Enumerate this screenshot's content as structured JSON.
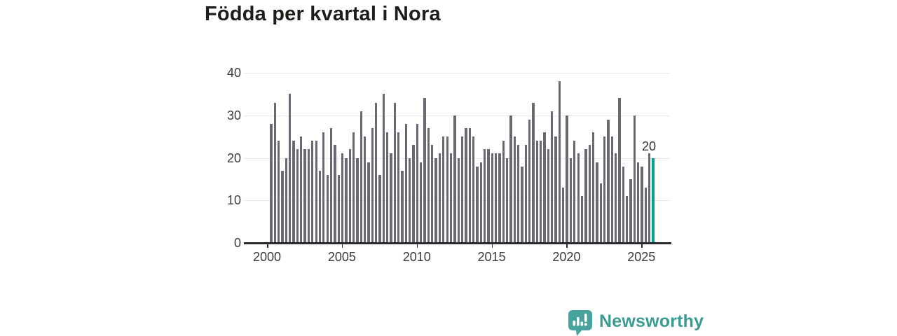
{
  "title": "Födda per kvartal i Nora",
  "annotation": {
    "label": "20"
  },
  "branding": {
    "name": "Newsworthy",
    "icon": "newsworthy-speech-bubble-chart-icon"
  },
  "colors": {
    "bar": "#696972",
    "highlight_bar": "#00a29a",
    "title_text": "#1f1d19",
    "axis_text": "#3a3a3a",
    "gridline": "#e8e8ea",
    "axis_line": "#2a2a2e",
    "brand_teal": "#3f9e97"
  },
  "chart_data": {
    "type": "bar",
    "title": "Födda per kvartal i Nora",
    "xlabel": "",
    "ylabel": "",
    "ylim": [
      0,
      40
    ],
    "yticks": [
      0,
      10,
      20,
      30,
      40
    ],
    "xticks": [
      2000,
      2005,
      2010,
      2015,
      2020,
      2025
    ],
    "grid": "horizontal",
    "legend": "none",
    "highlight_index": 102,
    "highlight_label": "20",
    "x_start": "2000-Q1",
    "x_end": "2025-Q3",
    "x": [
      "2000Q1",
      "2000Q2",
      "2000Q3",
      "2000Q4",
      "2001Q1",
      "2001Q2",
      "2001Q3",
      "2001Q4",
      "2002Q1",
      "2002Q2",
      "2002Q3",
      "2002Q4",
      "2003Q1",
      "2003Q2",
      "2003Q3",
      "2003Q4",
      "2004Q1",
      "2004Q2",
      "2004Q3",
      "2004Q4",
      "2005Q1",
      "2005Q2",
      "2005Q3",
      "2005Q4",
      "2006Q1",
      "2006Q2",
      "2006Q3",
      "2006Q4",
      "2007Q1",
      "2007Q2",
      "2007Q3",
      "2007Q4",
      "2008Q1",
      "2008Q2",
      "2008Q3",
      "2008Q4",
      "2009Q1",
      "2009Q2",
      "2009Q3",
      "2009Q4",
      "2010Q1",
      "2010Q2",
      "2010Q3",
      "2010Q4",
      "2011Q1",
      "2011Q2",
      "2011Q3",
      "2011Q4",
      "2012Q1",
      "2012Q2",
      "2012Q3",
      "2012Q4",
      "2013Q1",
      "2013Q2",
      "2013Q3",
      "2013Q4",
      "2014Q1",
      "2014Q2",
      "2014Q3",
      "2014Q4",
      "2015Q1",
      "2015Q2",
      "2015Q3",
      "2015Q4",
      "2016Q1",
      "2016Q2",
      "2016Q3",
      "2016Q4",
      "2017Q1",
      "2017Q2",
      "2017Q3",
      "2017Q4",
      "2018Q1",
      "2018Q2",
      "2018Q3",
      "2018Q4",
      "2019Q1",
      "2019Q2",
      "2019Q3",
      "2019Q4",
      "2020Q1",
      "2020Q2",
      "2020Q3",
      "2020Q4",
      "2021Q1",
      "2021Q2",
      "2021Q3",
      "2021Q4",
      "2022Q1",
      "2022Q2",
      "2022Q3",
      "2022Q4",
      "2023Q1",
      "2023Q2",
      "2023Q3",
      "2023Q4",
      "2024Q1",
      "2024Q2",
      "2024Q3",
      "2024Q4",
      "2025Q1",
      "2025Q2",
      "2025Q3"
    ],
    "values": [
      28,
      33,
      24,
      17,
      20,
      35,
      24,
      22,
      25,
      22,
      22,
      24,
      24,
      17,
      26,
      16,
      27,
      23,
      16,
      21,
      20,
      22,
      26,
      20,
      31,
      25,
      19,
      27,
      33,
      16,
      35,
      26,
      21,
      33,
      26,
      17,
      28,
      20,
      23,
      28,
      19,
      34,
      27,
      23,
      20,
      21,
      25,
      25,
      21,
      30,
      20,
      25,
      27,
      27,
      25,
      18,
      19,
      22,
      22,
      21,
      21,
      21,
      24,
      20,
      30,
      25,
      23,
      18,
      23,
      29,
      33,
      24,
      24,
      26,
      22,
      31,
      25,
      38,
      13,
      30,
      20,
      24,
      21,
      11,
      22,
      23,
      26,
      19,
      14,
      25,
      29,
      25,
      21,
      34,
      18,
      11,
      15,
      30,
      19,
      18,
      13,
      21,
      20
    ]
  }
}
